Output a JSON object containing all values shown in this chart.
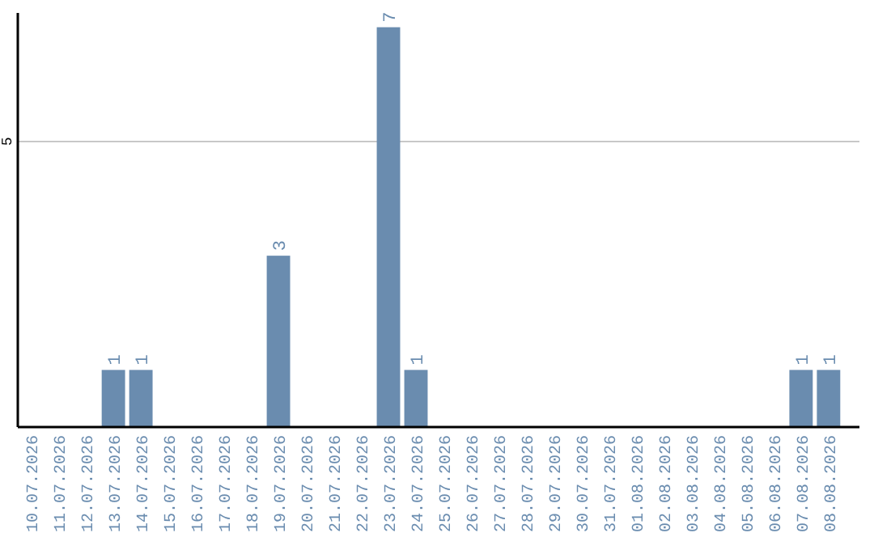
{
  "chart_data": {
    "type": "bar",
    "categories": [
      "10.07.2026",
      "11.07.2026",
      "12.07.2026",
      "13.07.2026",
      "14.07.2026",
      "15.07.2026",
      "16.07.2026",
      "17.07.2026",
      "18.07.2026",
      "19.07.2026",
      "20.07.2026",
      "21.07.2026",
      "22.07.2026",
      "23.07.2026",
      "24.07.2026",
      "25.07.2026",
      "26.07.2026",
      "27.07.2026",
      "28.07.2026",
      "29.07.2026",
      "30.07.2026",
      "31.07.2026",
      "01.08.2026",
      "02.08.2026",
      "03.08.2026",
      "04.08.2026",
      "05.08.2026",
      "06.08.2026",
      "07.08.2026",
      "08.08.2026"
    ],
    "values": [
      0,
      0,
      0,
      1,
      1,
      0,
      0,
      0,
      0,
      3,
      0,
      0,
      0,
      7,
      1,
      0,
      0,
      0,
      0,
      0,
      0,
      0,
      0,
      0,
      0,
      0,
      0,
      0,
      1,
      1
    ],
    "value_labels": [
      null,
      null,
      null,
      "1",
      "1",
      null,
      null,
      null,
      null,
      "3",
      null,
      null,
      null,
      "7",
      "1",
      null,
      null,
      null,
      null,
      null,
      null,
      null,
      null,
      null,
      null,
      null,
      null,
      null,
      "1",
      "1"
    ],
    "color": "#6a8caf",
    "ylim": [
      0,
      7.25
    ],
    "yticks": [
      5
    ],
    "grid": "y"
  }
}
